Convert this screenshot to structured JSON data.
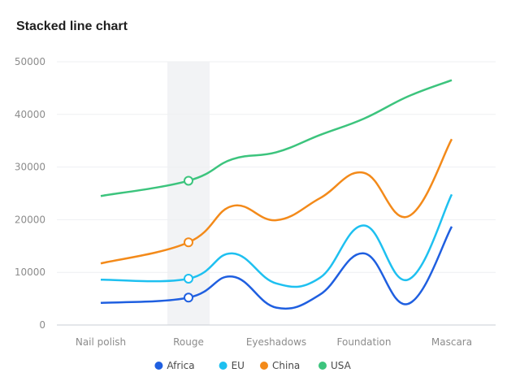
{
  "chart_data": {
    "type": "line",
    "stacked": true,
    "title": "Stacked line chart",
    "categories": [
      "Nail polish",
      "Rouge",
      "Eyeshadows",
      "Foundation",
      "Mascara"
    ],
    "x": [
      0,
      1,
      1.5,
      2,
      2.5,
      3,
      3.5,
      4
    ],
    "series": [
      {
        "name": "Africa",
        "color": "#1f5fe0",
        "values": [
          4200,
          5200,
          9200,
          3300,
          5800,
          13600,
          4000,
          18700
        ]
      },
      {
        "name": "EU",
        "color": "#1ec0f0",
        "values": [
          4400,
          3600,
          4400,
          4600,
          3200,
          5300,
          4600,
          6100
        ]
      },
      {
        "name": "China",
        "color": "#f38a1a",
        "values": [
          3100,
          6900,
          9000,
          12000,
          15100,
          10000,
          12000,
          10500
        ]
      },
      {
        "name": "USA",
        "color": "#3cc47d",
        "values": [
          12800,
          11700,
          8900,
          12900,
          12000,
          10300,
          22800,
          11200
        ]
      }
    ],
    "stacked_totals": {
      "Africa": [
        4200,
        5200,
        9200,
        3300,
        5800,
        13600,
        4000,
        18700
      ],
      "EU": [
        8600,
        8800,
        13600,
        7900,
        9000,
        18900,
        8600,
        24800
      ],
      "China": [
        11700,
        15700,
        22600,
        19900,
        24100,
        28900,
        20600,
        35300
      ],
      "USA": [
        24500,
        27400,
        31500,
        32800,
        36100,
        39200,
        43400,
        46500
      ]
    },
    "ylim": [
      0,
      50000
    ],
    "yticks": [
      "0",
      "10000",
      "20000",
      "30000",
      "40000",
      "50000"
    ],
    "highlight_category": "Rouge",
    "grid": true,
    "legend": "bottom-center",
    "xlabel": "",
    "ylabel": ""
  }
}
